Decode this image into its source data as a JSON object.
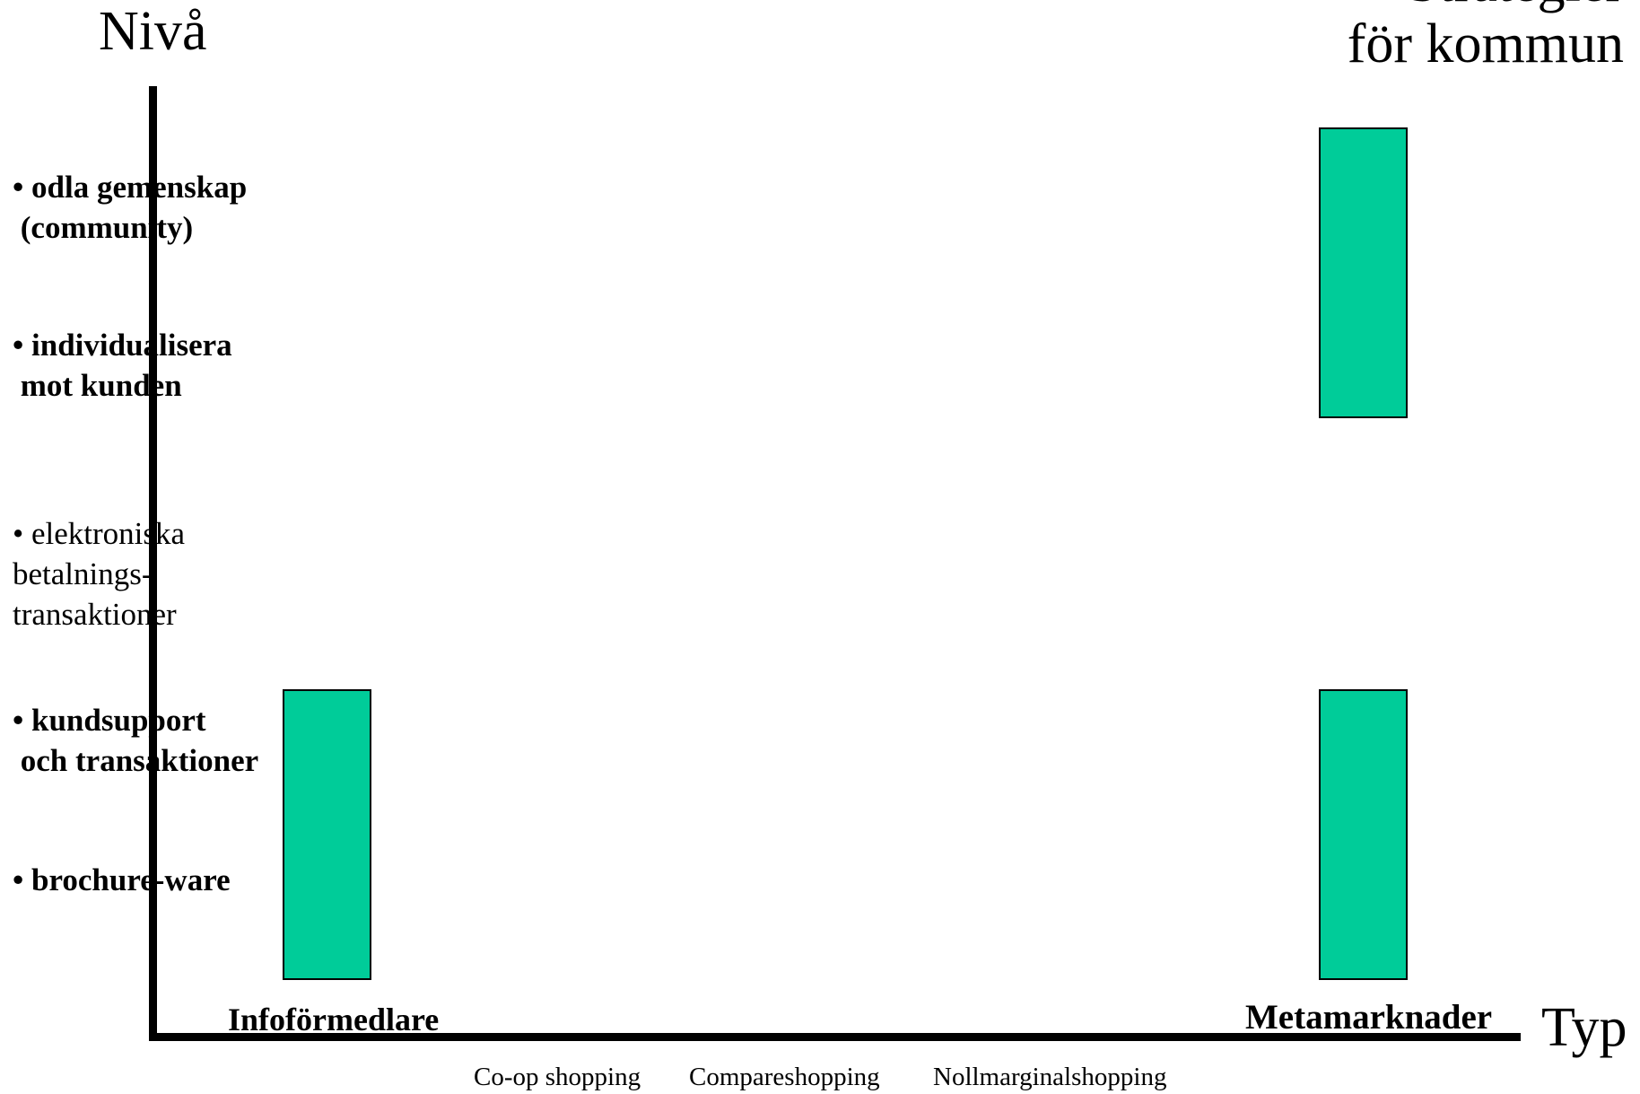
{
  "heading": {
    "line1": "Strategier",
    "line2": "för kommun"
  },
  "axes": {
    "y_title": "Nivå",
    "x_title": "Typ"
  },
  "levels": [
    {
      "text": "• odla gemenskap\n (community)",
      "bold": true
    },
    {
      "text": "• individualisera\n mot kunden",
      "bold": true
    },
    {
      "text": "• elektroniska\nbetalnings-\ntransaktioner",
      "bold": false
    },
    {
      "text": "• kundsupport\n och transaktioner",
      "bold": true
    },
    {
      "text": "• brochure-ware",
      "bold": true
    }
  ],
  "categories": {
    "main": [
      "Infoförmedlare",
      "Metamarknader"
    ],
    "intermediate": [
      "Co-op shopping",
      "Compareshopping",
      "Nollmarginalshopping"
    ]
  },
  "colors": {
    "bar_fill": "#00cc99",
    "axis": "#000000",
    "background": "#ffffff"
  }
}
